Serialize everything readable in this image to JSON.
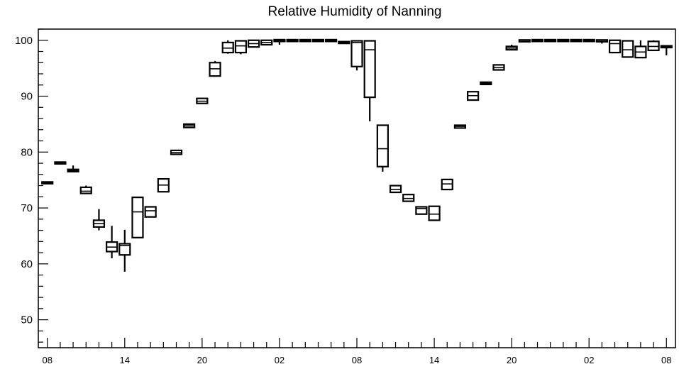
{
  "chart_data": {
    "type": "box",
    "title": "Relative Humidity of Nanning",
    "xlabel": "",
    "ylabel": "",
    "ylim": [
      45,
      102
    ],
    "yticks": [
      50,
      60,
      70,
      80,
      90,
      100
    ],
    "xlim": [
      -0.7,
      48.7
    ],
    "xticks": [
      {
        "pos": 0,
        "label": "08"
      },
      {
        "pos": 6,
        "label": "14"
      },
      {
        "pos": 12,
        "label": "20"
      },
      {
        "pos": 18,
        "label": "02"
      },
      {
        "pos": 24,
        "label": "08"
      },
      {
        "pos": 30,
        "label": "14"
      },
      {
        "pos": 36,
        "label": "20"
      },
      {
        "pos": 42,
        "label": "02"
      },
      {
        "pos": 48,
        "label": "08"
      }
    ],
    "grid": false,
    "boxes": [
      {
        "x": 0,
        "min": 74.4,
        "q1": 74.4,
        "median": 74.5,
        "q3": 74.6,
        "max": 74.6
      },
      {
        "x": 1,
        "min": 77.8,
        "q1": 77.9,
        "median": 78.0,
        "q3": 78.2,
        "max": 78.3
      },
      {
        "x": 2,
        "min": 76.5,
        "q1": 76.5,
        "median": 76.7,
        "q3": 76.9,
        "max": 77.6
      },
      {
        "x": 3,
        "min": 72.5,
        "q1": 72.6,
        "median": 73.0,
        "q3": 73.7,
        "max": 74.0
      },
      {
        "x": 4,
        "min": 66.0,
        "q1": 66.6,
        "median": 67.2,
        "q3": 67.8,
        "max": 69.8
      },
      {
        "x": 5,
        "min": 61.0,
        "q1": 62.2,
        "median": 63.0,
        "q3": 63.9,
        "max": 66.8
      },
      {
        "x": 6,
        "min": 58.6,
        "q1": 61.6,
        "median": 63.3,
        "q3": 63.6,
        "max": 66.1
      },
      {
        "x": 7,
        "min": 64.7,
        "q1": 64.7,
        "median": 69.3,
        "q3": 71.9,
        "max": 71.9
      },
      {
        "x": 8,
        "min": 68.4,
        "q1": 68.4,
        "median": 69.5,
        "q3": 70.2,
        "max": 70.2
      },
      {
        "x": 9,
        "min": 72.9,
        "q1": 72.9,
        "median": 74.1,
        "q3": 75.2,
        "max": 75.2
      },
      {
        "x": 10,
        "min": 79.6,
        "q1": 79.6,
        "median": 79.9,
        "q3": 80.3,
        "max": 80.3
      },
      {
        "x": 11,
        "min": 84.4,
        "q1": 84.4,
        "median": 84.7,
        "q3": 85.0,
        "max": 85.0
      },
      {
        "x": 12,
        "min": 88.7,
        "q1": 88.7,
        "median": 89.1,
        "q3": 89.6,
        "max": 89.6
      },
      {
        "x": 13,
        "min": 93.6,
        "q1": 93.6,
        "median": 94.9,
        "q3": 96.0,
        "max": 96.3
      },
      {
        "x": 14,
        "min": 97.6,
        "q1": 97.8,
        "median": 98.6,
        "q3": 99.6,
        "max": 100.0
      },
      {
        "x": 15,
        "min": 97.5,
        "q1": 97.8,
        "median": 99.0,
        "q3": 99.9,
        "max": 100.0
      },
      {
        "x": 16,
        "min": 98.8,
        "q1": 98.8,
        "median": 99.4,
        "q3": 100.0,
        "max": 100.0
      },
      {
        "x": 17,
        "min": 99.2,
        "q1": 99.2,
        "median": 99.6,
        "q3": 100.0,
        "max": 100.0
      },
      {
        "x": 18,
        "min": 99.2,
        "q1": 99.9,
        "median": 100.0,
        "q3": 100.0,
        "max": 100.0
      },
      {
        "x": 19,
        "min": 99.9,
        "q1": 99.9,
        "median": 100.0,
        "q3": 100.0,
        "max": 100.0
      },
      {
        "x": 20,
        "min": 99.9,
        "q1": 99.9,
        "median": 100.0,
        "q3": 100.0,
        "max": 100.0
      },
      {
        "x": 21,
        "min": 99.9,
        "q1": 99.9,
        "median": 100.0,
        "q3": 100.0,
        "max": 100.0
      },
      {
        "x": 22,
        "min": 99.9,
        "q1": 99.9,
        "median": 100.0,
        "q3": 100.0,
        "max": 100.0
      },
      {
        "x": 23,
        "min": 99.5,
        "q1": 99.5,
        "median": 99.6,
        "q3": 99.7,
        "max": 99.7
      },
      {
        "x": 24,
        "min": 94.6,
        "q1": 95.3,
        "median": 99.6,
        "q3": 99.9,
        "max": 100.0
      },
      {
        "x": 25,
        "min": 85.5,
        "q1": 89.8,
        "median": 98.3,
        "q3": 99.9,
        "max": 100.0
      },
      {
        "x": 26,
        "min": 76.5,
        "q1": 77.4,
        "median": 80.6,
        "q3": 84.8,
        "max": 84.8
      },
      {
        "x": 27,
        "min": 72.7,
        "q1": 72.8,
        "median": 73.3,
        "q3": 74.0,
        "max": 74.0
      },
      {
        "x": 28,
        "min": 71.2,
        "q1": 71.2,
        "median": 71.7,
        "q3": 72.4,
        "max": 72.4
      },
      {
        "x": 29,
        "min": 68.9,
        "q1": 68.9,
        "median": 69.9,
        "q3": 70.2,
        "max": 70.2
      },
      {
        "x": 30,
        "min": 67.8,
        "q1": 67.8,
        "median": 68.9,
        "q3": 70.3,
        "max": 70.3
      },
      {
        "x": 31,
        "min": 73.3,
        "q1": 73.3,
        "median": 74.3,
        "q3": 75.1,
        "max": 75.1
      },
      {
        "x": 32,
        "min": 84.3,
        "q1": 84.3,
        "median": 84.6,
        "q3": 84.8,
        "max": 84.8
      },
      {
        "x": 33,
        "min": 89.2,
        "q1": 89.3,
        "median": 90.1,
        "q3": 90.8,
        "max": 90.8
      },
      {
        "x": 34,
        "min": 92.1,
        "q1": 92.1,
        "median": 92.3,
        "q3": 92.5,
        "max": 92.5
      },
      {
        "x": 35,
        "min": 94.6,
        "q1": 94.7,
        "median": 95.1,
        "q3": 95.6,
        "max": 95.6
      },
      {
        "x": 36,
        "min": 98.3,
        "q1": 98.3,
        "median": 98.6,
        "q3": 98.9,
        "max": 99.2
      },
      {
        "x": 37,
        "min": 99.8,
        "q1": 99.8,
        "median": 100.0,
        "q3": 100.0,
        "max": 100.0
      },
      {
        "x": 38,
        "min": 99.9,
        "q1": 99.9,
        "median": 100.0,
        "q3": 100.0,
        "max": 100.0
      },
      {
        "x": 39,
        "min": 99.9,
        "q1": 99.9,
        "median": 100.0,
        "q3": 100.0,
        "max": 100.0
      },
      {
        "x": 40,
        "min": 99.9,
        "q1": 99.9,
        "median": 100.0,
        "q3": 100.0,
        "max": 100.0
      },
      {
        "x": 41,
        "min": 99.9,
        "q1": 99.9,
        "median": 100.0,
        "q3": 100.0,
        "max": 100.0
      },
      {
        "x": 42,
        "min": 99.9,
        "q1": 99.9,
        "median": 100.0,
        "q3": 100.0,
        "max": 100.0
      },
      {
        "x": 43,
        "min": 99.4,
        "q1": 99.8,
        "median": 100.0,
        "q3": 100.0,
        "max": 100.0
      },
      {
        "x": 44,
        "min": 97.8,
        "q1": 97.8,
        "median": 99.4,
        "q3": 100.0,
        "max": 100.0
      },
      {
        "x": 45,
        "min": 97.0,
        "q1": 97.0,
        "median": 98.3,
        "q3": 99.9,
        "max": 99.9
      },
      {
        "x": 46,
        "min": 96.8,
        "q1": 96.9,
        "median": 97.9,
        "q3": 98.9,
        "max": 100.0
      },
      {
        "x": 47,
        "min": 98.2,
        "q1": 98.2,
        "median": 98.9,
        "q3": 99.8,
        "max": 100.0
      },
      {
        "x": 48,
        "min": 97.3,
        "q1": 98.7,
        "median": 98.9,
        "q3": 99.0,
        "max": 99.1
      }
    ]
  }
}
